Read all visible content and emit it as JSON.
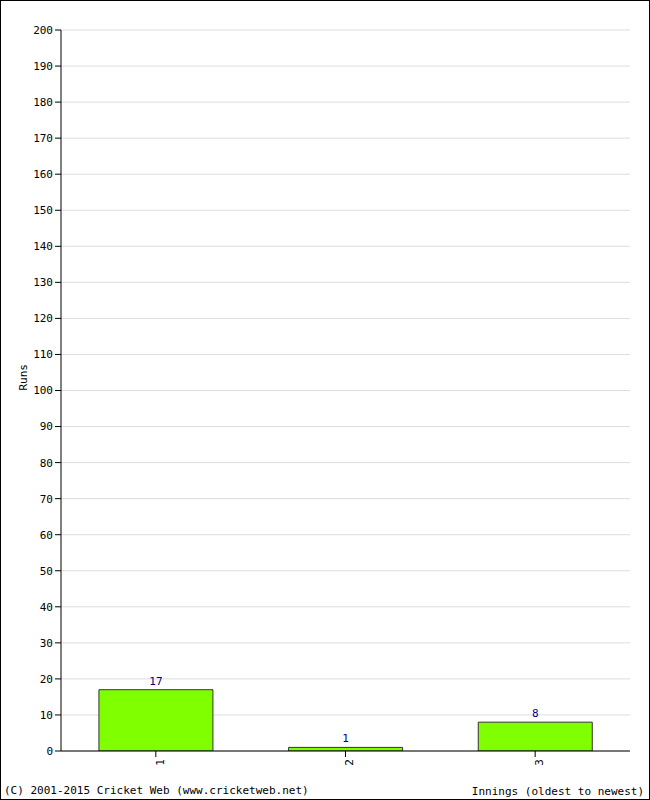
{
  "chart_data": {
    "type": "bar",
    "categories": [
      "1",
      "2",
      "3"
    ],
    "values": [
      17,
      1,
      8
    ],
    "color": "#80ff00",
    "xlabel": "Innings (oldest to newest)",
    "ylabel": "Runs",
    "annotation": "(C) 2001-2015 Cricket Web (www.cricketweb.net)",
    "ylim": [
      0,
      200
    ],
    "yticks": [
      0,
      10,
      20,
      30,
      40,
      50,
      60,
      70,
      80,
      90,
      100,
      110,
      120,
      130,
      140,
      150,
      160,
      170,
      180,
      190,
      200
    ],
    "grid": true,
    "data_labels": true
  }
}
